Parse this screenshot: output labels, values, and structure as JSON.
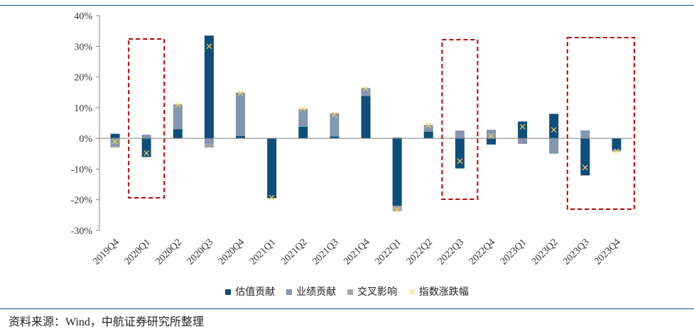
{
  "chart_data": {
    "type": "bar",
    "stacked": true,
    "categories": [
      "2019Q4",
      "2020Q1",
      "2020Q2",
      "2020Q3",
      "2020Q4",
      "2021Q1",
      "2021Q2",
      "2021Q3",
      "2021Q4",
      "2022Q1",
      "2022Q2",
      "2022Q3",
      "2022Q4",
      "2023Q1",
      "2023Q2",
      "2023Q3",
      "2023Q4"
    ],
    "series": [
      {
        "name": "估值贡献",
        "color": "#0e4e7a",
        "values": [
          1.5,
          -6.0,
          3.0,
          33.5,
          0.8,
          -19.5,
          3.8,
          0.6,
          13.8,
          -22.0,
          2.2,
          -9.8,
          -2.0,
          5.5,
          8.0,
          -12.0,
          -3.8
        ]
      },
      {
        "name": "业绩贡献",
        "color": "#8497b0",
        "values": [
          -2.7,
          1.2,
          8.0,
          -2.0,
          14.0,
          0.0,
          5.7,
          7.5,
          2.5,
          0.3,
          2.0,
          2.5,
          2.8,
          -1.7,
          -5.0,
          2.6,
          -0.3
        ]
      },
      {
        "name": "交叉影响",
        "color": "#a5a5a5",
        "values": [
          -0.3,
          -0.2,
          0.1,
          -1.0,
          0.1,
          0.0,
          0.1,
          0.1,
          0.1,
          -1.7,
          0.2,
          0.1,
          0.0,
          -0.1,
          0.0,
          -0.2,
          -0.2
        ]
      }
    ],
    "line": {
      "name": "指数涨跌幅",
      "color": "#ffd24d",
      "marker": "x",
      "values": [
        -1.0,
        -4.8,
        11.0,
        30.0,
        14.7,
        -19.3,
        9.7,
        7.8,
        16.2,
        -23.3,
        4.2,
        -7.4,
        0.8,
        3.8,
        2.8,
        -9.5,
        -4.2
      ]
    },
    "ylim": [
      -30,
      40
    ],
    "yticks": [
      "-30%",
      "-20%",
      "-10%",
      "0%",
      "10%",
      "20%",
      "30%",
      "40%"
    ],
    "highlight_groups": [
      [
        "2020Q1"
      ],
      [
        "2022Q3"
      ],
      [
        "2023Q3",
        "2023Q4"
      ]
    ],
    "highlight_color": "#c00000",
    "legend_position": "bottom"
  },
  "source": "资料来源：Wind，中航证券研究所整理"
}
